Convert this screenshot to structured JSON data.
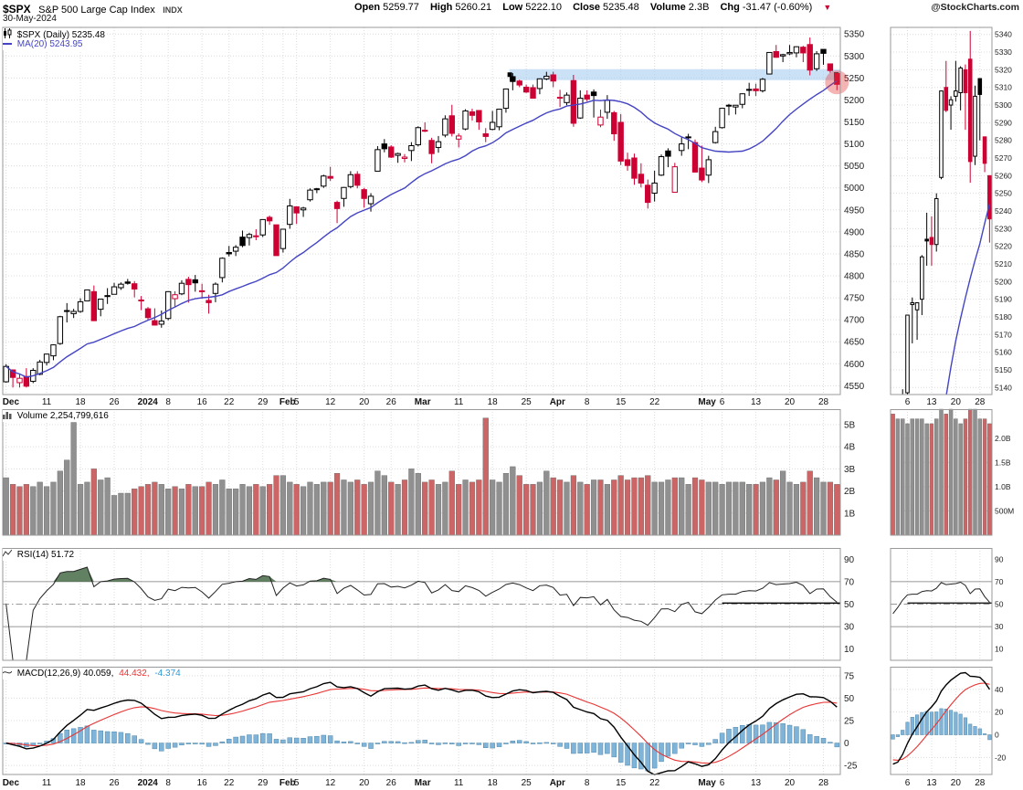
{
  "header": {
    "symbol": "$SPX",
    "title": "S&P 500 Large Cap Index",
    "exchange": "INDX",
    "date": "30-May-2024",
    "source": "@StockCharts.com",
    "down_arrow": "▼",
    "quote": [
      {
        "label": "Open",
        "value": "5259.77"
      },
      {
        "label": "High",
        "value": "5260.21"
      },
      {
        "label": "Low",
        "value": "5222.10"
      },
      {
        "label": "Close",
        "value": "5235.48"
      },
      {
        "label": "Volume",
        "value": "2.3B"
      },
      {
        "label": "Chg",
        "value": "-31.47 (-0.60%)"
      }
    ]
  },
  "legends": {
    "price": "$SPX (Daily) 5235.48",
    "ma": "MA(20) 5243.95",
    "volume": "Volume 2,254,799,616",
    "rsi": "RSI(14) 51.72",
    "macd": "MACD(12,26,9) 40.059,",
    "macd_signal": "44.432,",
    "macd_hist": "-4.374"
  },
  "chart_data": {
    "type": "candlestick-multi-panel",
    "title": "$SPX S&P 500 Large Cap Index, Daily, Dec 2023 - 30-May-2024",
    "panels": [
      "price with MA(20) and zoomed last-month inset",
      "volume",
      "RSI(14)",
      "MACD(12,26,9)"
    ],
    "indicators": {
      "ma_period": 20,
      "rsi_period": 14,
      "macd": [
        12,
        26,
        9
      ]
    },
    "current_values": {
      "close": 5235.48,
      "ma20": 5243.95,
      "rsi14": 51.72,
      "macd": 40.059,
      "macd_signal": 44.432,
      "macd_hist": -4.374,
      "volume": "2,254,799,616"
    },
    "colors": {
      "up_candle": "#000000",
      "down_candle": "#cc0033",
      "ma_line": "#4444c4",
      "volume_up": "#909090",
      "volume_down": "#cc6666",
      "rsi_line": "#222222",
      "rsi_fill": "#476b47",
      "macd_line": "#000000",
      "macd_signal": "#e93434",
      "macd_hist": "#7fb4d8",
      "macd_hist_border": "#4f88ad",
      "macd_hist_text": "#2e9bd6",
      "band": "#a8cdf0",
      "circle": "#e23a3a",
      "grid": "#dcdcdc",
      "frame": "#9a9a9a"
    },
    "x_range": "01-Dec-2023 to 30-May-2024",
    "x_ticks": [
      {
        "i": 0,
        "label": "Dec",
        "bold": true
      },
      {
        "i": 6,
        "label": "11"
      },
      {
        "i": 11,
        "label": "18"
      },
      {
        "i": 16,
        "label": "26"
      },
      {
        "i": 20,
        "label": "2024",
        "bold": true
      },
      {
        "i": 24,
        "label": "8"
      },
      {
        "i": 29,
        "label": "16"
      },
      {
        "i": 33,
        "label": "22"
      },
      {
        "i": 38,
        "label": "29"
      },
      {
        "i": 41,
        "label": "Feb",
        "bold": true
      },
      {
        "i": 43,
        "label": "5"
      },
      {
        "i": 48,
        "label": "12"
      },
      {
        "i": 53,
        "label": "20"
      },
      {
        "i": 57,
        "label": "26"
      },
      {
        "i": 61,
        "label": "Mar",
        "bold": true
      },
      {
        "i": 67,
        "label": "11"
      },
      {
        "i": 72,
        "label": "18"
      },
      {
        "i": 77,
        "label": "25"
      },
      {
        "i": 81,
        "label": "Apr",
        "bold": true
      },
      {
        "i": 86,
        "label": "8"
      },
      {
        "i": 91,
        "label": "15"
      },
      {
        "i": 96,
        "label": "22"
      },
      {
        "i": 103,
        "label": "May",
        "bold": true
      },
      {
        "i": 106,
        "label": "6"
      },
      {
        "i": 111,
        "label": "13"
      },
      {
        "i": 116,
        "label": "20"
      },
      {
        "i": 121,
        "label": "28"
      }
    ],
    "price_axis": {
      "min": 4530,
      "max": 5365,
      "ticks": [
        5350,
        5300,
        5250,
        5200,
        5150,
        5100,
        5050,
        5000,
        4950,
        4900,
        4850,
        4800,
        4750,
        4700,
        4650,
        4600,
        4550
      ]
    },
    "volume_axis": {
      "max": 5.7,
      "ticks": [
        {
          "v": 5,
          "label": "5B"
        },
        {
          "v": 4,
          "label": "4B"
        },
        {
          "v": 3,
          "label": "3B"
        },
        {
          "v": 2,
          "label": "2B"
        },
        {
          "v": 1,
          "label": "1B"
        }
      ]
    },
    "rsi_axis": {
      "ticks": [
        90,
        70,
        50,
        30,
        10
      ]
    },
    "macd_axis": {
      "min": -35,
      "max": 85,
      "ticks": [
        75,
        50,
        25,
        0,
        -25
      ]
    },
    "mini": {
      "start_index": 103,
      "x_ticks": [
        {
          "i": 106,
          "label": "6"
        },
        {
          "i": 111,
          "label": "13"
        },
        {
          "i": 116,
          "label": "20"
        },
        {
          "i": 121,
          "label": "28"
        }
      ],
      "price_axis": {
        "min": 5136,
        "max": 5344,
        "ticks": [
          5340,
          5330,
          5320,
          5310,
          5300,
          5290,
          5280,
          5270,
          5260,
          5250,
          5240,
          5230,
          5220,
          5210,
          5200,
          5190,
          5180,
          5170,
          5160,
          5150,
          5140
        ]
      },
      "volume_axis": {
        "max": 2.6,
        "ticks": [
          {
            "v": 2,
            "label": "2.0B"
          },
          {
            "v": 1.5,
            "label": "1.5B"
          },
          {
            "v": 1,
            "label": "1.0B"
          },
          {
            "v": 0.5,
            "label": "500M"
          }
        ]
      },
      "macd_axis": {
        "min": -35,
        "max": 60,
        "ticks": [
          40,
          20,
          0,
          -20
        ]
      }
    },
    "annotations": {
      "resistance_band": {
        "start_index": 75,
        "price_low": 5245,
        "price_high": 5270
      },
      "highlight_circle": {
        "index": 123,
        "price": 5240,
        "radius": 13
      },
      "rsi_support_line": {
        "start_index": 106,
        "value": 51
      }
    },
    "ohlc": [
      [
        4559,
        4599,
        4557,
        4594
      ],
      [
        4586,
        4587,
        4546,
        4569
      ],
      [
        4557,
        4578,
        4546,
        4567
      ],
      [
        4571,
        4590,
        4546,
        4549
      ],
      [
        4560,
        4590,
        4556,
        4585
      ],
      [
        4576,
        4609,
        4574,
        4604
      ],
      [
        4603,
        4623,
        4596,
        4622
      ],
      [
        4618,
        4644,
        4608,
        4643
      ],
      [
        4646,
        4709,
        4643,
        4707
      ],
      [
        4721,
        4738,
        4694,
        4719
      ],
      [
        4714,
        4725,
        4704,
        4719
      ],
      [
        4719,
        4749,
        4716,
        4741
      ],
      [
        4743,
        4768,
        4743,
        4768
      ],
      [
        4764,
        4778,
        4697,
        4698
      ],
      [
        4724,
        4748,
        4708,
        4747
      ],
      [
        4753,
        4772,
        4736,
        4755
      ],
      [
        4758,
        4784,
        4758,
        4775
      ],
      [
        4773,
        4785,
        4768,
        4781
      ],
      [
        4786,
        4793,
        4780,
        4783
      ],
      [
        4782,
        4788,
        4751,
        4770
      ],
      [
        4745,
        4754,
        4722,
        4743
      ],
      [
        4725,
        4729,
        4699,
        4705
      ],
      [
        4698,
        4726,
        4687,
        4688
      ],
      [
        4690,
        4721,
        4682,
        4697
      ],
      [
        4703,
        4764,
        4699,
        4764
      ],
      [
        4748,
        4765,
        4730,
        4757
      ],
      [
        4759,
        4790,
        4756,
        4783
      ],
      [
        4792,
        4798,
        4739,
        4780
      ],
      [
        4791,
        4802,
        4764,
        4784
      ],
      [
        4766,
        4782,
        4748,
        4766
      ],
      [
        4744,
        4757,
        4714,
        4739
      ],
      [
        4760,
        4785,
        4740,
        4781
      ],
      [
        4796,
        4842,
        4785,
        4840
      ],
      [
        4853,
        4868,
        4844,
        4850
      ],
      [
        4856,
        4870,
        4845,
        4865
      ],
      [
        4888,
        4903,
        4865,
        4869
      ],
      [
        4887,
        4898,
        4869,
        4894
      ],
      [
        4889,
        4906,
        4881,
        4891
      ],
      [
        4893,
        4929,
        4888,
        4928
      ],
      [
        4933,
        4937,
        4916,
        4925
      ],
      [
        4916,
        4916,
        4846,
        4846
      ],
      [
        4862,
        4906,
        4853,
        4906
      ],
      [
        4917,
        4975,
        4907,
        4959
      ],
      [
        4957,
        4957,
        4918,
        4943
      ],
      [
        4950,
        4957,
        4934,
        4954
      ],
      [
        4973,
        4999,
        4969,
        4995
      ],
      [
        4996,
        5000,
        4988,
        4998
      ],
      [
        5004,
        5030,
        5000,
        5027
      ],
      [
        5026,
        5048,
        5016,
        5022
      ],
      [
        4967,
        4971,
        4920,
        4953
      ],
      [
        4976,
        5002,
        4957,
        5001
      ],
      [
        5003,
        5038,
        4999,
        5030
      ],
      [
        5031,
        5038,
        4999,
        5006
      ],
      [
        4996,
        5000,
        4955,
        4976
      ],
      [
        4964,
        4988,
        4946,
        4981
      ],
      [
        5038,
        5095,
        5038,
        5087
      ],
      [
        5100,
        5111,
        5081,
        5089
      ],
      [
        5093,
        5097,
        5068,
        5070
      ],
      [
        5074,
        5080,
        5057,
        5078
      ],
      [
        5067,
        5077,
        5058,
        5070
      ],
      [
        5085,
        5104,
        5061,
        5096
      ],
      [
        5098,
        5140,
        5094,
        5137
      ],
      [
        5130,
        5149,
        5127,
        5131
      ],
      [
        5108,
        5114,
        5056,
        5078
      ],
      [
        5092,
        5118,
        5080,
        5105
      ],
      [
        5120,
        5165,
        5115,
        5157
      ],
      [
        5164,
        5189,
        5117,
        5124
      ],
      [
        5111,
        5124,
        5092,
        5118
      ],
      [
        5134,
        5179,
        5131,
        5175
      ],
      [
        5173,
        5180,
        5153,
        5165
      ],
      [
        5176,
        5176,
        5132,
        5150
      ],
      [
        5123,
        5136,
        5104,
        5117
      ],
      [
        5133,
        5175,
        5131,
        5149
      ],
      [
        5139,
        5180,
        5131,
        5179
      ],
      [
        5181,
        5226,
        5171,
        5225
      ],
      [
        5253,
        5261,
        5222,
        5242
      ],
      [
        5243,
        5246,
        5229,
        5234
      ],
      [
        5229,
        5235,
        5216,
        5218
      ],
      [
        5228,
        5235,
        5203,
        5204
      ],
      [
        5226,
        5249,
        5213,
        5248
      ],
      [
        5248,
        5264,
        5245,
        5254
      ],
      [
        5257,
        5264,
        5229,
        5243
      ],
      [
        5204,
        5223,
        5184,
        5206
      ],
      [
        5194,
        5217,
        5188,
        5211
      ],
      [
        5244,
        5257,
        5139,
        5147
      ],
      [
        5159,
        5222,
        5157,
        5204
      ],
      [
        5211,
        5222,
        5197,
        5202
      ],
      [
        5218,
        5224,
        5160,
        5210
      ],
      [
        5143,
        5178,
        5138,
        5161
      ],
      [
        5172,
        5211,
        5157,
        5199
      ],
      [
        5171,
        5175,
        5107,
        5123
      ],
      [
        5149,
        5168,
        5052,
        5061
      ],
      [
        5064,
        5080,
        5039,
        5051
      ],
      [
        5068,
        5078,
        5007,
        5022
      ],
      [
        5031,
        5056,
        5001,
        5011
      ],
      [
        5006,
        5019,
        4953,
        4967
      ],
      [
        4988,
        5039,
        4969,
        5011
      ],
      [
        5029,
        5076,
        5027,
        5071
      ],
      [
        5084,
        5090,
        5047,
        5072
      ],
      [
        4990,
        5057,
        4990,
        5048
      ],
      [
        5085,
        5115,
        5073,
        5100
      ],
      [
        5114,
        5123,
        5088,
        5116
      ],
      [
        5103,
        5110,
        5035,
        5036
      ],
      [
        5045,
        5096,
        5013,
        5018
      ],
      [
        5029,
        5073,
        5011,
        5064
      ],
      [
        5103,
        5139,
        5101,
        5128
      ],
      [
        5137,
        5181,
        5135,
        5181
      ],
      [
        5187,
        5191,
        5165,
        5188
      ],
      [
        5184,
        5188,
        5167,
        5188
      ],
      [
        5190,
        5215,
        5181,
        5214
      ],
      [
        5224,
        5239,
        5209,
        5223
      ],
      [
        5225,
        5237,
        5209,
        5221
      ],
      [
        5221,
        5250,
        5217,
        5247
      ],
      [
        5259,
        5305,
        5258,
        5308
      ],
      [
        5310,
        5325,
        5296,
        5297
      ],
      [
        5300,
        5305,
        5286,
        5303
      ],
      [
        5305,
        5325,
        5302,
        5308
      ],
      [
        5307,
        5322,
        5297,
        5321
      ],
      [
        5320,
        5323,
        5286,
        5307
      ],
      [
        5326,
        5342,
        5256,
        5268
      ],
      [
        5271,
        5311,
        5266,
        5305
      ],
      [
        5315,
        5315,
        5280,
        5306
      ],
      [
        5282,
        5282,
        5262,
        5267
      ],
      [
        5260,
        5260.2,
        5222.1,
        5235.5
      ]
    ],
    "volume": [
      2.6,
      2.3,
      2.2,
      2.3,
      2.2,
      2.4,
      2.2,
      2.4,
      2.9,
      3.4,
      5.1,
      2.3,
      2.4,
      3.0,
      2.5,
      2.6,
      1.8,
      1.9,
      1.9,
      2.1,
      2.2,
      2.3,
      2.4,
      2.3,
      2.1,
      2.2,
      2.1,
      2.3,
      2.2,
      2.2,
      2.4,
      2.3,
      2.5,
      2.1,
      2.1,
      2.3,
      2.2,
      2.3,
      2.2,
      2.3,
      2.7,
      2.7,
      2.4,
      2.3,
      2.2,
      2.4,
      2.3,
      2.4,
      2.4,
      2.8,
      2.5,
      2.4,
      2.5,
      2.3,
      2.4,
      2.9,
      2.7,
      2.4,
      2.3,
      2.5,
      3.0,
      2.8,
      2.4,
      2.5,
      2.3,
      2.4,
      2.9,
      2.3,
      2.5,
      2.4,
      2.5,
      5.3,
      2.5,
      2.4,
      2.8,
      3.1,
      2.7,
      2.3,
      2.3,
      2.4,
      2.9,
      2.6,
      2.5,
      2.4,
      2.7,
      2.4,
      2.3,
      2.5,
      2.5,
      2.3,
      2.5,
      2.7,
      2.5,
      2.6,
      2.6,
      2.7,
      2.4,
      2.4,
      2.5,
      2.6,
      2.6,
      2.3,
      2.6,
      2.5,
      2.4,
      2.4,
      2.3,
      2.4,
      2.4,
      2.4,
      2.3,
      2.3,
      2.4,
      2.6,
      2.5,
      2.9,
      2.4,
      2.3,
      2.4,
      2.9,
      2.6,
      2.4,
      2.4,
      2.3
    ]
  }
}
